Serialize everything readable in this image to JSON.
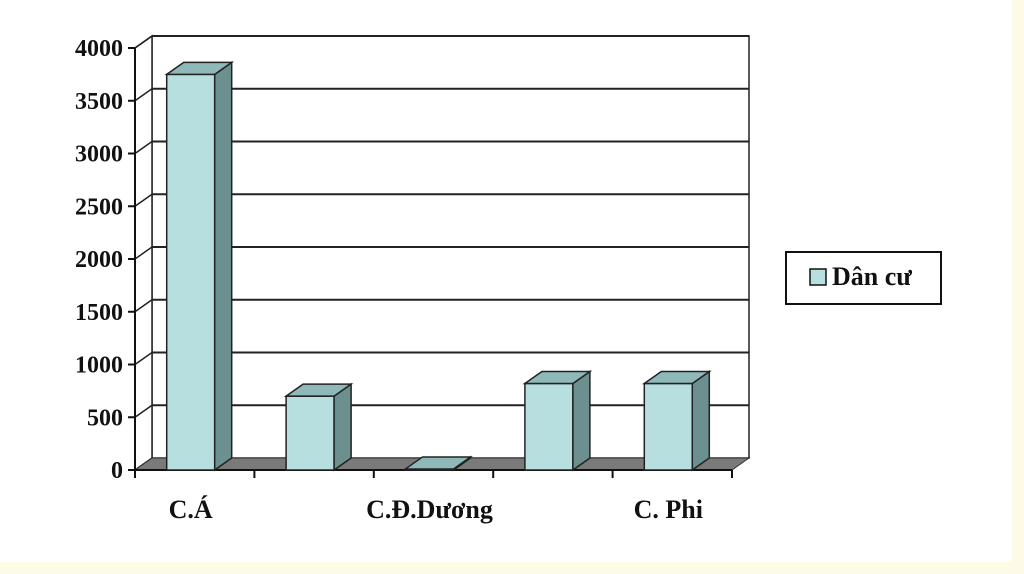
{
  "colors": {
    "bar_front": "#b8dfe0",
    "bar_side": "#6c8f8f",
    "bar_top": "#8fb8b9",
    "floor": "#7a7a7a",
    "page_background": "#fdfbe6"
  },
  "chart_data": {
    "type": "bar",
    "categories": [
      "C.Á",
      "",
      "C.Đ.Dương",
      "",
      "C. Phi"
    ],
    "x_tick_labels": [
      "C.Á",
      "C.Đ.Dương",
      "C. Phi"
    ],
    "series": [
      {
        "name": "Dân cư",
        "values": [
          3750,
          700,
          10,
          820,
          820
        ]
      }
    ],
    "yticks": [
      "4000",
      "3500",
      "3000",
      "2500",
      "2000",
      "1500",
      "1000",
      "500",
      "0"
    ],
    "ylim": [
      0,
      4000
    ],
    "grid": true,
    "legend": "right",
    "title": "",
    "xlabel": "",
    "ylabel": ""
  }
}
